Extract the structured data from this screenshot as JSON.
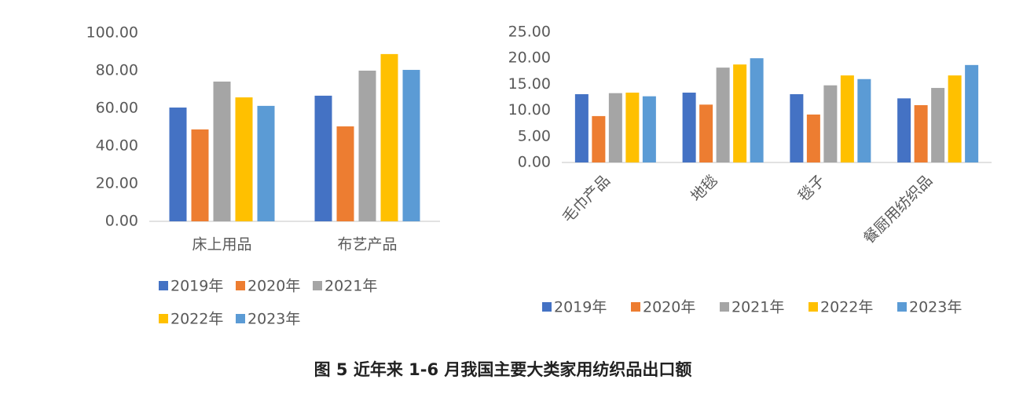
{
  "chart_data": [
    {
      "type": "bar",
      "categories": [
        "床上用品",
        "布艺产品"
      ],
      "series": [
        {
          "name": "2019年",
          "color": "#4472c4",
          "values": [
            60.4,
            66.7
          ]
        },
        {
          "name": "2020年",
          "color": "#ed7d31",
          "values": [
            48.8,
            50.4
          ]
        },
        {
          "name": "2021年",
          "color": "#a5a5a5",
          "values": [
            74.2,
            80.0
          ]
        },
        {
          "name": "2022年",
          "color": "#ffc000",
          "values": [
            65.8,
            88.8
          ]
        },
        {
          "name": "2023年",
          "color": "#5b9bd5",
          "values": [
            61.3,
            80.4
          ]
        }
      ],
      "ylim": [
        0,
        100
      ],
      "yticks": [
        {
          "value": 0,
          "label": "0.00"
        },
        {
          "value": 20,
          "label": "20.00"
        },
        {
          "value": 40,
          "label": "40.00"
        },
        {
          "value": 60,
          "label": "60.00"
        },
        {
          "value": 80,
          "label": "80.00"
        },
        {
          "value": 100,
          "label": "100.00"
        }
      ],
      "grid": false
    },
    {
      "type": "bar",
      "categories": [
        "毛巾产品",
        "地毯",
        "毯子",
        "餐厨用纺织品"
      ],
      "series": [
        {
          "name": "2019年",
          "color": "#4472c4",
          "values": [
            13.1,
            13.4,
            13.1,
            12.3
          ]
        },
        {
          "name": "2020年",
          "color": "#ed7d31",
          "values": [
            8.9,
            11.1,
            9.2,
            11.0
          ]
        },
        {
          "name": "2021年",
          "color": "#a5a5a5",
          "values": [
            13.3,
            18.2,
            14.8,
            14.3
          ]
        },
        {
          "name": "2022年",
          "color": "#ffc000",
          "values": [
            13.4,
            18.8,
            16.7,
            16.7
          ]
        },
        {
          "name": "2023年",
          "color": "#5b9bd5",
          "values": [
            12.7,
            20.0,
            16.0,
            18.7
          ]
        }
      ],
      "ylim": [
        0,
        25
      ],
      "yticks": [
        {
          "value": 0,
          "label": "0.00"
        },
        {
          "value": 5,
          "label": "5.00"
        },
        {
          "value": 10,
          "label": "10.00"
        },
        {
          "value": 15,
          "label": "15.00"
        },
        {
          "value": 20,
          "label": "20.00"
        },
        {
          "value": 25,
          "label": "25.00"
        }
      ],
      "grid": false
    }
  ],
  "caption": "图 5  近年来 1-6 月我国主要大类家用纺织品出口额"
}
